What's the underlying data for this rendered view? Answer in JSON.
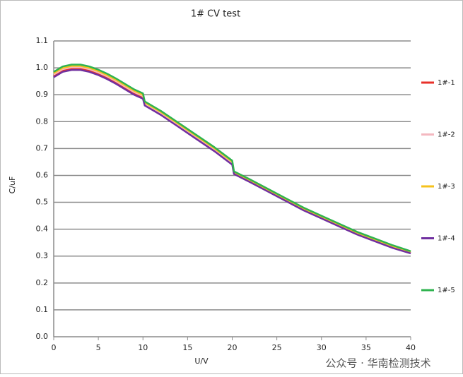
{
  "chart_data": {
    "type": "line",
    "title": "1# CV test",
    "x_label": "U/V",
    "y_label": "C/uF",
    "x": [
      0,
      1,
      2,
      3,
      4,
      5,
      6,
      7,
      8,
      9,
      10,
      10.2,
      12,
      14,
      16,
      18,
      20,
      20.2,
      22,
      24,
      26,
      28,
      30,
      32,
      34,
      36,
      38,
      40
    ],
    "series": [
      {
        "name": "1#-1",
        "color": "#e8312a",
        "values": [
          0.97,
          0.99,
          0.997,
          0.997,
          0.99,
          0.978,
          0.963,
          0.945,
          0.925,
          0.905,
          0.89,
          0.864,
          0.829,
          0.784,
          0.739,
          0.694,
          0.644,
          0.608,
          0.578,
          0.543,
          0.508,
          0.473,
          0.443,
          0.413,
          0.383,
          0.358,
          0.333,
          0.312
        ]
      },
      {
        "name": "1#-2",
        "color": "#f4b8c0",
        "values": [
          0.975,
          0.995,
          1.002,
          1.002,
          0.995,
          0.983,
          0.968,
          0.95,
          0.93,
          0.91,
          0.895,
          0.867,
          0.832,
          0.787,
          0.742,
          0.697,
          0.647,
          0.61,
          0.58,
          0.545,
          0.51,
          0.475,
          0.445,
          0.415,
          0.385,
          0.36,
          0.335,
          0.314
        ]
      },
      {
        "name": "1#-3",
        "color": "#f6c21c",
        "values": [
          0.98,
          1.0,
          1.007,
          1.007,
          1.0,
          0.988,
          0.973,
          0.955,
          0.935,
          0.915,
          0.9,
          0.871,
          0.836,
          0.791,
          0.746,
          0.701,
          0.651,
          0.612,
          0.582,
          0.547,
          0.512,
          0.477,
          0.447,
          0.417,
          0.387,
          0.362,
          0.337,
          0.316
        ]
      },
      {
        "name": "1#-4",
        "color": "#7030a0",
        "values": [
          0.965,
          0.985,
          0.992,
          0.992,
          0.985,
          0.973,
          0.958,
          0.94,
          0.92,
          0.9,
          0.885,
          0.86,
          0.825,
          0.78,
          0.735,
          0.69,
          0.64,
          0.605,
          0.575,
          0.54,
          0.505,
          0.47,
          0.44,
          0.41,
          0.38,
          0.355,
          0.33,
          0.31
        ]
      },
      {
        "name": "1#-5",
        "color": "#2fb34f",
        "values": [
          0.985,
          1.005,
          1.012,
          1.012,
          1.005,
          0.993,
          0.978,
          0.96,
          0.94,
          0.92,
          0.905,
          0.875,
          0.84,
          0.795,
          0.75,
          0.705,
          0.655,
          0.615,
          0.585,
          0.55,
          0.515,
          0.48,
          0.45,
          0.42,
          0.39,
          0.365,
          0.34,
          0.318
        ]
      }
    ],
    "xlim": [
      0,
      40
    ],
    "xticks": [
      0,
      5,
      10,
      15,
      20,
      25,
      30,
      35,
      40
    ],
    "ylim": [
      0,
      1.1
    ],
    "yticks": [
      {
        "value": 0,
        "label": "0.0"
      },
      0.1,
      0.2,
      0.3,
      0.4,
      0.5,
      0.6,
      0.7,
      0.8,
      0.9,
      {
        "value": 1,
        "label": "1.0"
      },
      1.1
    ],
    "grid": true,
    "legend": "right",
    "watermark": "公众号 · 华南检测技术"
  }
}
